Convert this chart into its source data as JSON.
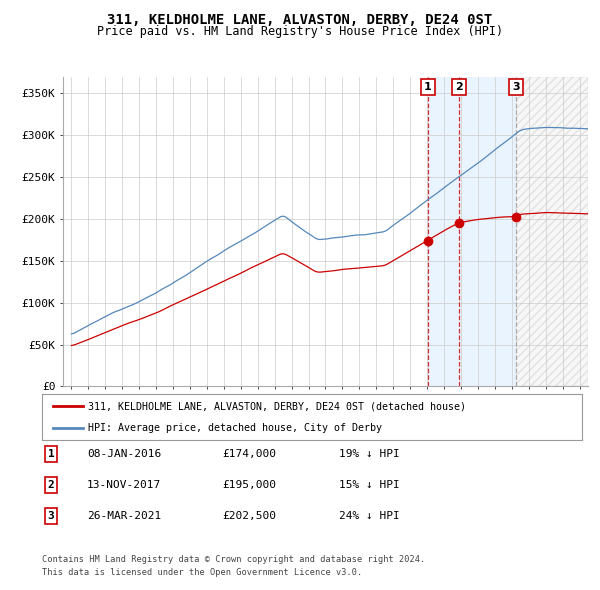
{
  "title": "311, KELDHOLME LANE, ALVASTON, DERBY, DE24 0ST",
  "subtitle": "Price paid vs. HM Land Registry's House Price Index (HPI)",
  "ylabel_ticks": [
    "£0",
    "£50K",
    "£100K",
    "£150K",
    "£200K",
    "£250K",
    "£300K",
    "£350K"
  ],
  "ytick_vals": [
    0,
    50000,
    100000,
    150000,
    200000,
    250000,
    300000,
    350000
  ],
  "ylim": [
    0,
    370000
  ],
  "xlim_start": 1994.5,
  "xlim_end": 2025.5,
  "sale_dates": [
    2016.03,
    2017.87,
    2021.23
  ],
  "sale_prices": [
    174000,
    195000,
    202500
  ],
  "sale_labels": [
    "1",
    "2",
    "3"
  ],
  "legend_line1": "311, KELDHOLME LANE, ALVASTON, DERBY, DE24 0ST (detached house)",
  "legend_line2": "HPI: Average price, detached house, City of Derby",
  "table_data": [
    [
      "1",
      "08-JAN-2016",
      "£174,000",
      "19% ↓ HPI"
    ],
    [
      "2",
      "13-NOV-2017",
      "£195,000",
      "15% ↓ HPI"
    ],
    [
      "3",
      "26-MAR-2021",
      "£202,500",
      "24% ↓ HPI"
    ]
  ],
  "footer1": "Contains HM Land Registry data © Crown copyright and database right 2024.",
  "footer2": "This data is licensed under the Open Government Licence v3.0.",
  "red_color": "#cc0000",
  "blue_color": "#5588bb",
  "blue_fill": "#ddeeff",
  "hatch_color": "#cccccc",
  "background_color": "#ffffff",
  "grid_color": "#cccccc"
}
